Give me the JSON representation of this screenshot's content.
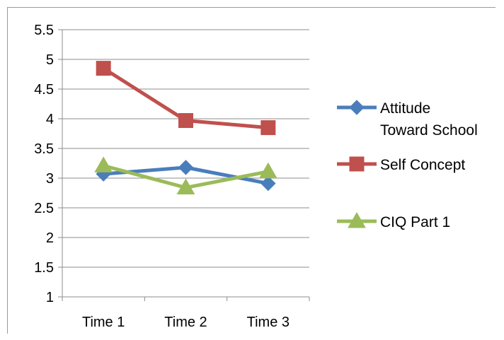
{
  "chart_data": {
    "type": "line",
    "title": "",
    "xlabel": "",
    "ylabel": "",
    "categories": [
      "Time 1",
      "Time 2",
      "Time 3"
    ],
    "ylim": [
      1,
      5.5
    ],
    "yticks": [
      "5.5",
      "5",
      "4.5",
      "4",
      "3.5",
      "3",
      "2.5",
      "2",
      "1.5",
      "1"
    ],
    "grid": true,
    "legend": "right",
    "series": [
      {
        "name": "Attitude Toward School",
        "name_lines": [
          "Attitude",
          "Toward School"
        ],
        "values": [
          3.07,
          3.18,
          2.91
        ],
        "color": "#4a7ebb",
        "marker": "diamond"
      },
      {
        "name": "Self Concept",
        "name_lines": [
          "Self Concept"
        ],
        "values": [
          4.85,
          3.97,
          3.85
        ],
        "color": "#c0504d",
        "marker": "square"
      },
      {
        "name": "CIQ Part 1",
        "name_lines": [
          "CIQ Part 1"
        ],
        "values": [
          3.21,
          2.84,
          3.11
        ],
        "color": "#9bbb59",
        "marker": "triangle"
      }
    ]
  }
}
